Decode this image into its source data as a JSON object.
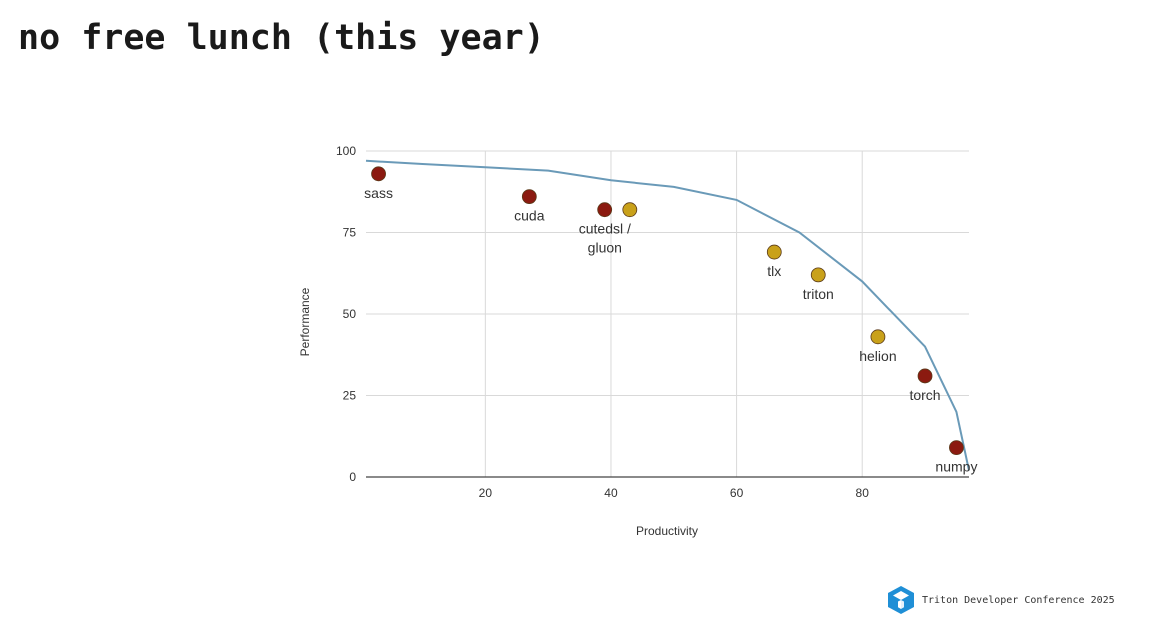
{
  "slide": {
    "title": "no free lunch (this year)",
    "footer_text": "Triton Developer Conference 2025",
    "logo_color": "#1f8fd6"
  },
  "chart_data": {
    "type": "scatter",
    "title": "",
    "xlabel": "Productivity",
    "ylabel": "Performance",
    "xlim": [
      1,
      97
    ],
    "ylim": [
      0,
      100
    ],
    "x_ticks": [
      20,
      40,
      60,
      80
    ],
    "y_ticks": [
      0,
      25,
      50,
      75,
      100
    ],
    "grid": true,
    "frontier": {
      "color": "#6a9ab8",
      "points": [
        [
          1,
          97
        ],
        [
          10,
          96
        ],
        [
          20,
          95
        ],
        [
          30,
          94
        ],
        [
          40,
          91
        ],
        [
          50,
          89
        ],
        [
          60,
          85
        ],
        [
          70,
          75
        ],
        [
          80,
          60
        ],
        [
          90,
          40
        ],
        [
          95,
          20
        ],
        [
          97,
          2
        ]
      ]
    },
    "colors": {
      "dark_red": "#8b1a10",
      "gold": "#c9a11a"
    },
    "points": [
      {
        "label": "sass",
        "x": 3,
        "y": 93,
        "color": "dark_red",
        "label_pos": "below"
      },
      {
        "label": "cuda",
        "x": 27,
        "y": 86,
        "color": "dark_red",
        "label_pos": "below"
      },
      {
        "label": "",
        "x": 39,
        "y": 82,
        "color": "dark_red",
        "label_pos": "none"
      },
      {
        "label": "cutedsl /\ngluon",
        "x": 43,
        "y": 82,
        "color": "gold",
        "label_pos": "below-left"
      },
      {
        "label": "tlx",
        "x": 66,
        "y": 69,
        "color": "gold",
        "label_pos": "below"
      },
      {
        "label": "triton",
        "x": 73,
        "y": 62,
        "color": "gold",
        "label_pos": "below"
      },
      {
        "label": "helion",
        "x": 82.5,
        "y": 43,
        "color": "gold",
        "label_pos": "below"
      },
      {
        "label": "torch",
        "x": 90,
        "y": 31,
        "color": "dark_red",
        "label_pos": "below"
      },
      {
        "label": "numpy",
        "x": 95,
        "y": 9,
        "color": "dark_red",
        "label_pos": "below"
      }
    ]
  }
}
